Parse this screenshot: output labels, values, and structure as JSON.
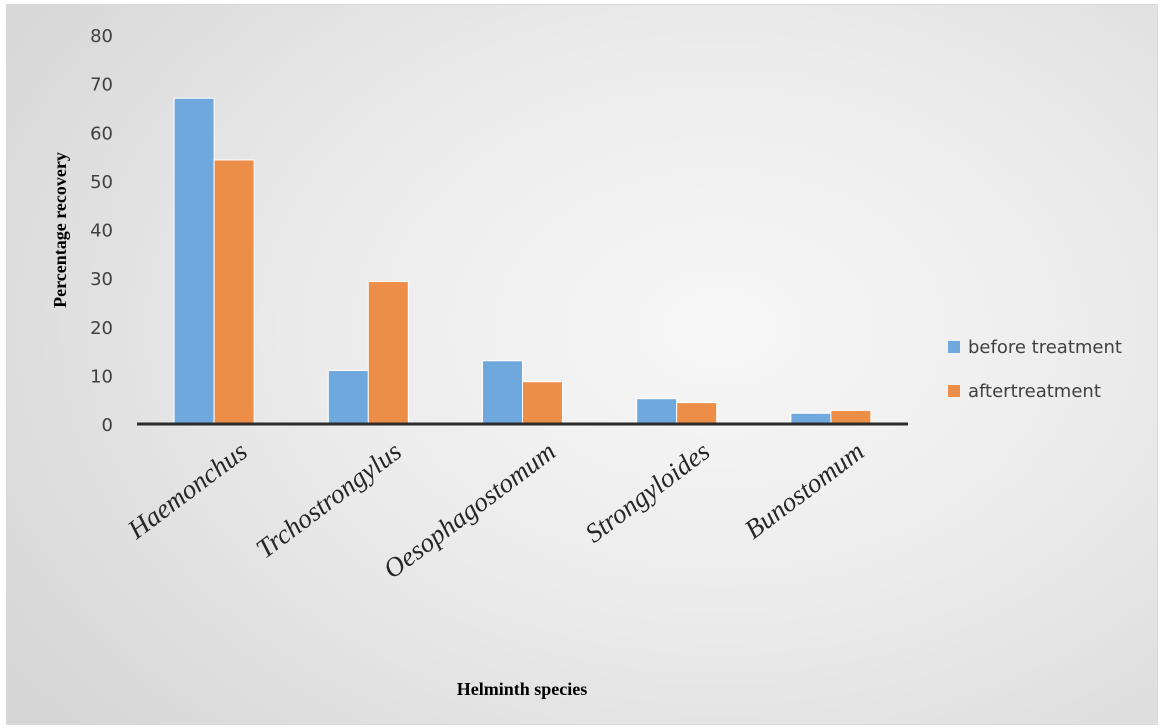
{
  "chart_data": {
    "type": "bar",
    "title": "",
    "xlabel": "Helminth species",
    "ylabel": "Percentage recovery",
    "categories": [
      "Haemonchus",
      "Trchostrongylus",
      "Oesophagostomum",
      "Strongyloides",
      "Bunostomum"
    ],
    "series": [
      {
        "name": "before treatment",
        "color": "#6fa8dc",
        "values": [
          67,
          11,
          13,
          5.2,
          2.2
        ]
      },
      {
        "name": "aftertreatment",
        "color": "#ed8e48",
        "values": [
          54.3,
          29.3,
          8.7,
          4.4,
          2.8
        ]
      }
    ],
    "ylim": [
      0,
      80
    ],
    "yticks": [
      0,
      10,
      20,
      30,
      40,
      50,
      60,
      70,
      80
    ],
    "grid": false,
    "legend_position": "right"
  }
}
